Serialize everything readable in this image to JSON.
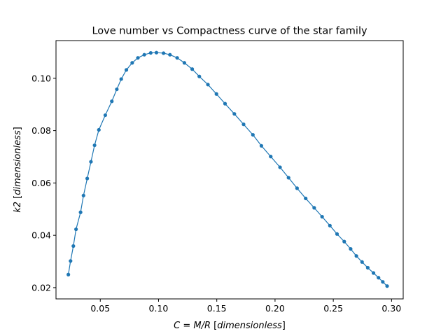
{
  "chart_data": {
    "type": "line",
    "title": "Love number vs Compactness curve of the star family",
    "xlabel": {
      "math": "C = M/R",
      "bracket": "[dimensionless]"
    },
    "ylabel": {
      "math": "k2",
      "bracket": "[dimensionless]"
    },
    "xlim": [
      0.012,
      0.31
    ],
    "ylim": [
      0.0157,
      0.1144
    ],
    "xticks": [
      0.05,
      0.1,
      0.15,
      0.2,
      0.25,
      0.3
    ],
    "xtick_labels": [
      "0.05",
      "0.10",
      "0.15",
      "0.20",
      "0.25",
      "0.30"
    ],
    "yticks": [
      0.02,
      0.04,
      0.06,
      0.08,
      0.1
    ],
    "ytick_labels": [
      "0.02",
      "0.04",
      "0.06",
      "0.08",
      "0.10"
    ],
    "grid": false,
    "marker": "circle",
    "line_color": "#1f77b4",
    "series": [
      {
        "x": [
          0.0226,
          0.0245,
          0.0269,
          0.0292,
          0.0331,
          0.0356,
          0.0388,
          0.042,
          0.0451,
          0.0488,
          0.0543,
          0.0599,
          0.0642,
          0.068,
          0.0724,
          0.0774,
          0.0823,
          0.0878,
          0.0933,
          0.0982,
          0.1043,
          0.1098,
          0.116,
          0.1222,
          0.1289,
          0.135,
          0.1424,
          0.1497,
          0.1571,
          0.1651,
          0.173,
          0.181,
          0.1883,
          0.1963,
          0.2043,
          0.2116,
          0.2189,
          0.2263,
          0.2336,
          0.2404,
          0.2471,
          0.2532,
          0.2594,
          0.2649,
          0.2698,
          0.2747,
          0.2796,
          0.2845,
          0.2888,
          0.2925,
          0.2962
        ],
        "y": [
          0.025,
          0.0302,
          0.0359,
          0.0423,
          0.0488,
          0.0552,
          0.0617,
          0.0681,
          0.0744,
          0.0803,
          0.0859,
          0.0912,
          0.0958,
          0.0997,
          0.1032,
          0.1059,
          0.1078,
          0.109,
          0.1097,
          0.1098,
          0.1096,
          0.109,
          0.1078,
          0.1059,
          0.1035,
          0.1007,
          0.0976,
          0.094,
          0.0903,
          0.0864,
          0.0824,
          0.0784,
          0.0742,
          0.0701,
          0.066,
          0.062,
          0.058,
          0.0541,
          0.0505,
          0.0471,
          0.0437,
          0.0405,
          0.0376,
          0.0348,
          0.0321,
          0.0298,
          0.0276,
          0.0256,
          0.0238,
          0.0222,
          0.0206
        ]
      }
    ]
  }
}
